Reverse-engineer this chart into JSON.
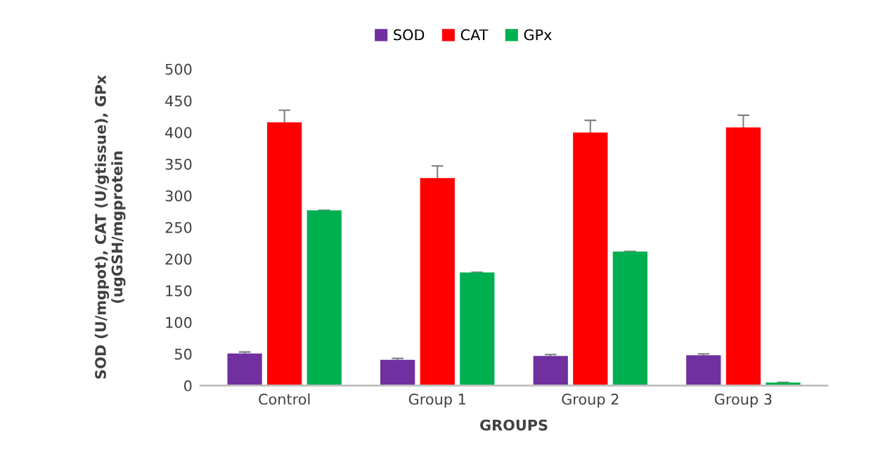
{
  "chart_data": {
    "type": "bar",
    "xlabel": "GROUPS",
    "ylabel": "SOD (U/mgpot), CAT (U/gtissue), GPx\n(ugGSH/mgprotein",
    "categories": [
      "Control",
      "Group 1",
      "Group 2",
      "Group 3"
    ],
    "series": [
      {
        "name": "SOD",
        "color": "#7030a0",
        "values": [
          50,
          40,
          46,
          47
        ],
        "errors": [
          3,
          3,
          3,
          3
        ]
      },
      {
        "name": "CAT",
        "color": "#ff0000",
        "values": [
          415,
          327,
          399,
          407
        ],
        "errors": [
          20,
          20,
          20,
          20
        ]
      },
      {
        "name": "GPx",
        "color": "#00b050",
        "values": [
          276,
          178,
          211,
          4
        ],
        "errors": [
          1,
          1,
          1,
          1
        ]
      }
    ],
    "ylim": [
      0,
      500
    ],
    "yticks": [
      0,
      50,
      100,
      150,
      200,
      250,
      300,
      350,
      400,
      450,
      500
    ],
    "grid": false,
    "legend": "top"
  }
}
